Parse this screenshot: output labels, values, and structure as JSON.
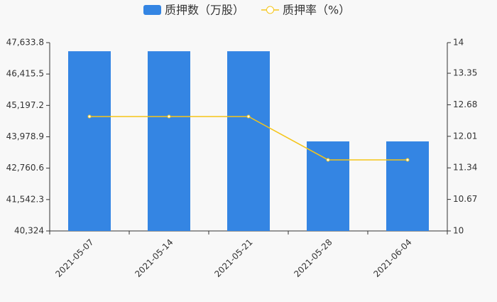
{
  "chart_data": {
    "type": "bar-line",
    "categories": [
      "2021-05-07",
      "2021-05-14",
      "2021-05-21",
      "2021-05-28",
      "2021-06-04"
    ],
    "series": [
      {
        "name": "质押数（万股）",
        "type": "bar",
        "color": "#3485e3",
        "values": [
          47300,
          47300,
          47300,
          43800,
          43800
        ]
      },
      {
        "name": "质押率（%）",
        "type": "line",
        "axis": "y2",
        "color": "#f5c518",
        "values": [
          12.43,
          12.43,
          12.43,
          11.51,
          11.51
        ]
      }
    ],
    "ylim": [
      40324,
      47633.8
    ],
    "yticks": [
      {
        "value": 40324,
        "label": "40,324"
      },
      {
        "value": 41542.3,
        "label": "41,542.3"
      },
      {
        "value": 42760.6,
        "label": "42,760.6"
      },
      {
        "value": 43978.9,
        "label": "43,978.9"
      },
      {
        "value": 45197.2,
        "label": "45,197.2"
      },
      {
        "value": 46415.5,
        "label": "46,415.5"
      },
      {
        "value": 47633.8,
        "label": "47,633.8"
      }
    ],
    "y2lim": [
      10,
      14
    ],
    "y2ticks": [
      10,
      10.67,
      11.34,
      12.01,
      12.68,
      13.35,
      14
    ],
    "legend": "top"
  }
}
